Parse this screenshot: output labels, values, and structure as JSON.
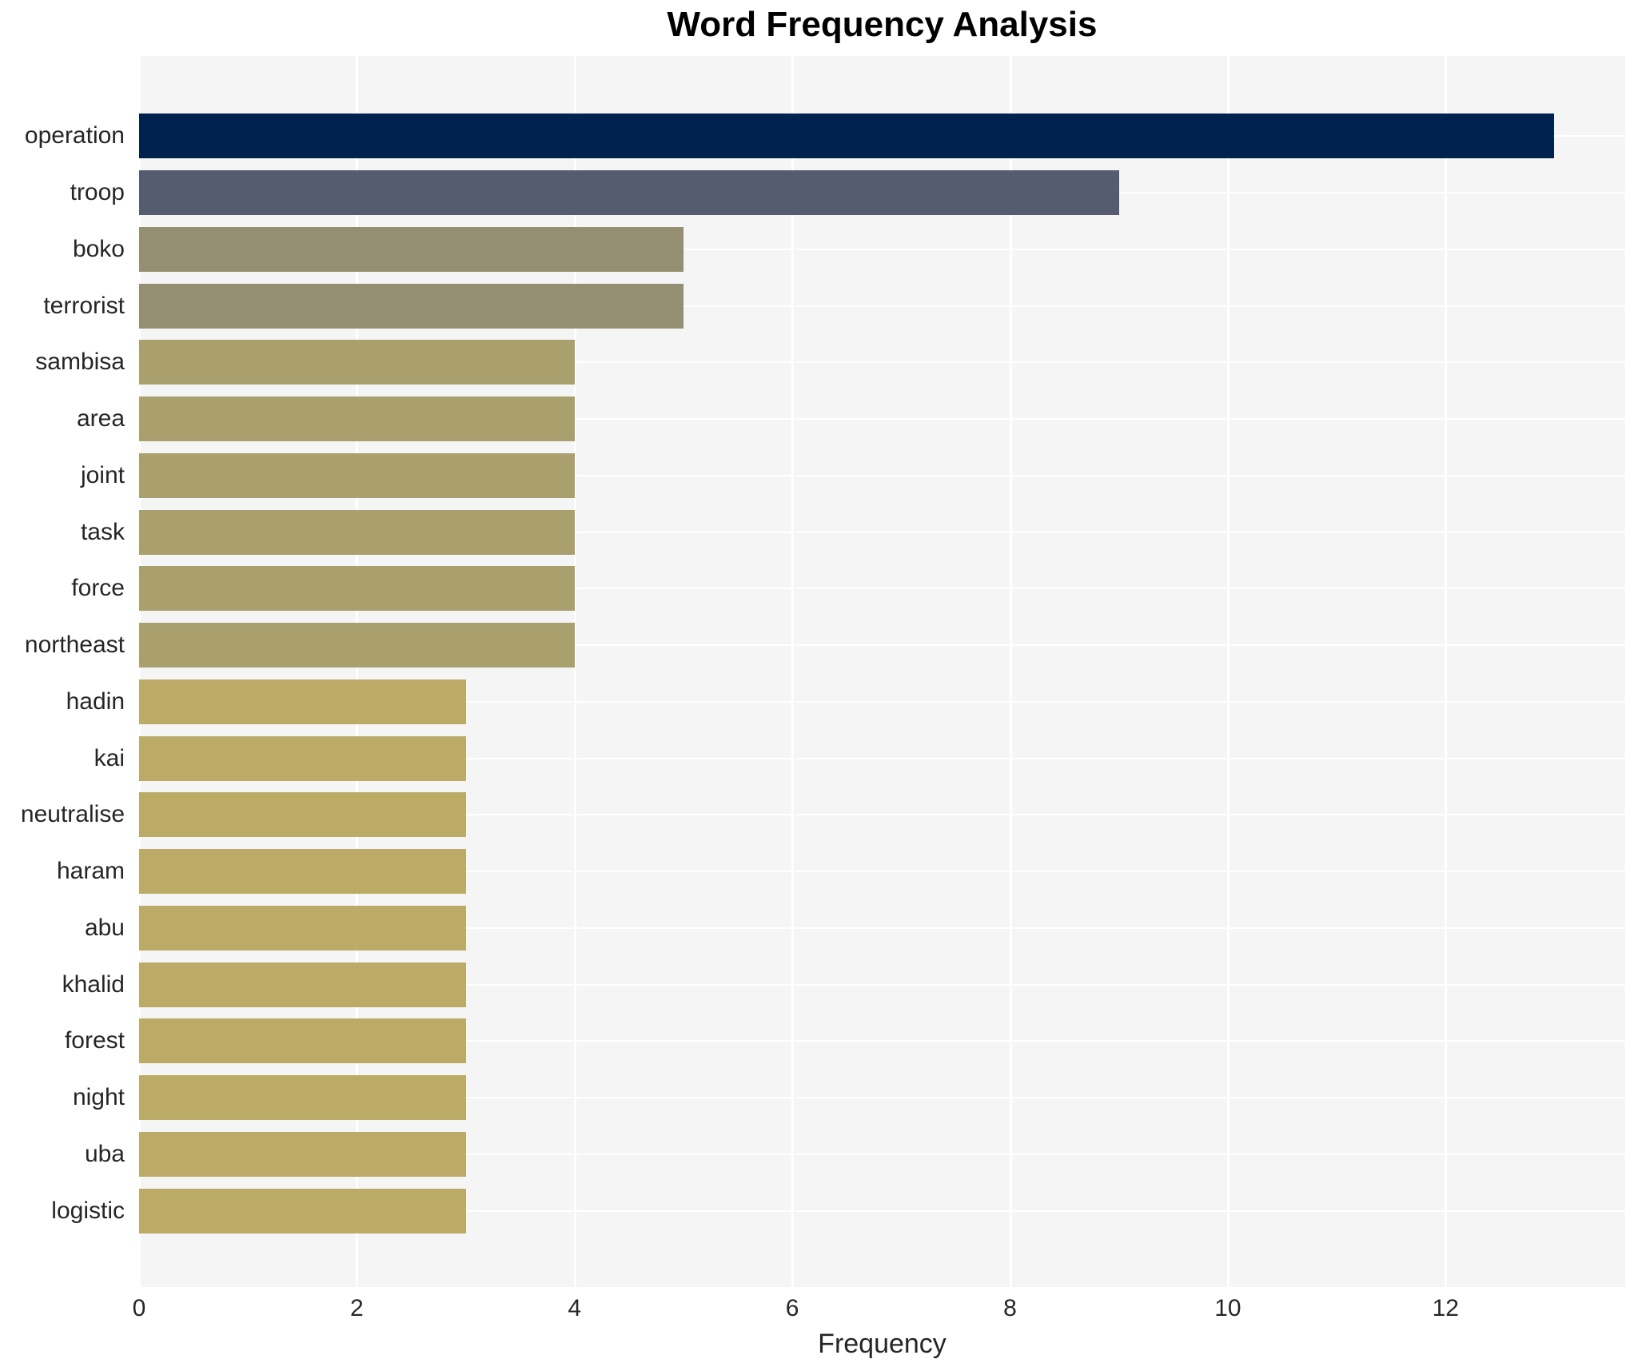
{
  "chart_data": {
    "type": "bar",
    "orientation": "horizontal",
    "title": "Word Frequency Analysis",
    "xlabel": "Frequency",
    "ylabel": "",
    "categories": [
      "operation",
      "troop",
      "boko",
      "terrorist",
      "sambisa",
      "area",
      "joint",
      "task",
      "force",
      "northeast",
      "hadin",
      "kai",
      "neutralise",
      "haram",
      "abu",
      "khalid",
      "forest",
      "night",
      "uba",
      "logistic"
    ],
    "values": [
      13,
      9,
      5,
      5,
      4,
      4,
      4,
      4,
      4,
      4,
      3,
      3,
      3,
      3,
      3,
      3,
      3,
      3,
      3,
      3
    ],
    "bar_colors": [
      "#00224e",
      "#565c70",
      "#948e72",
      "#948e72",
      "#a9a06d",
      "#a9a06d",
      "#a9a06d",
      "#a9a06d",
      "#a9a06d",
      "#a9a06d",
      "#bcab66",
      "#bcab66",
      "#bcab66",
      "#bcab66",
      "#bcab66",
      "#bcab66",
      "#bcab66",
      "#bcab66",
      "#bcab66",
      "#bcab66"
    ],
    "xticks": [
      0,
      2,
      4,
      6,
      8,
      10,
      12
    ],
    "xlim": [
      0,
      13.65
    ],
    "grid": true,
    "legend": false,
    "panel_bg": "#f5f5f6",
    "grid_color": "#ffffff",
    "text_color": "#262626"
  }
}
